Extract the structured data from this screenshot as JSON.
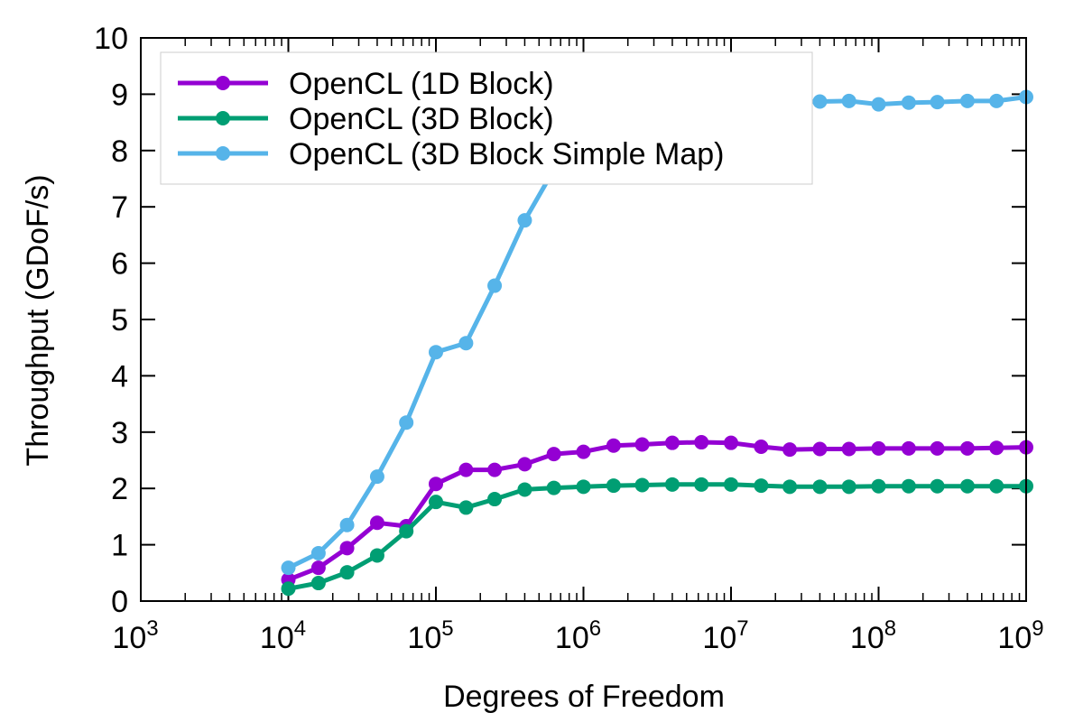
{
  "chart_data": {
    "type": "line",
    "xlabel": "Degrees of Freedom",
    "ylabel": "Throughput (GDoF/s)",
    "x_scale": "log",
    "xlim": [
      1000,
      1000000000
    ],
    "ylim": [
      0,
      10
    ],
    "x_ticks": [
      {
        "value": 1000,
        "base": "10",
        "exp": "3"
      },
      {
        "value": 10000,
        "base": "10",
        "exp": "4"
      },
      {
        "value": 100000,
        "base": "10",
        "exp": "5"
      },
      {
        "value": 1000000,
        "base": "10",
        "exp": "6"
      },
      {
        "value": 10000000,
        "base": "10",
        "exp": "7"
      },
      {
        "value": 100000000,
        "base": "10",
        "exp": "8"
      },
      {
        "value": 1000000000,
        "base": "10",
        "exp": "9"
      }
    ],
    "y_ticks": [
      0,
      1,
      2,
      3,
      4,
      5,
      6,
      7,
      8,
      9,
      10
    ],
    "grid": false,
    "legend_position": "top-left",
    "x": [
      10000,
      16000,
      25000,
      40000,
      63000,
      100000,
      160000,
      250000,
      400000,
      630000,
      1000000,
      1600000,
      2500000,
      4000000,
      6300000,
      10000000,
      16000000,
      25000000,
      40000000,
      63000000,
      100000000,
      160000000,
      250000000,
      400000000,
      630000000,
      1000000000
    ],
    "series": [
      {
        "name": "OpenCL (1D Block)",
        "color": "#9400d3",
        "values": [
          0.38,
          0.59,
          0.94,
          1.39,
          1.33,
          2.08,
          2.33,
          2.33,
          2.43,
          2.61,
          2.65,
          2.76,
          2.78,
          2.81,
          2.82,
          2.81,
          2.74,
          2.69,
          2.7,
          2.7,
          2.71,
          2.71,
          2.71,
          2.71,
          2.72,
          2.73
        ]
      },
      {
        "name": "OpenCL (3D Block)",
        "color": "#009e73",
        "values": [
          0.22,
          0.32,
          0.51,
          0.81,
          1.24,
          1.76,
          1.66,
          1.81,
          1.98,
          2.01,
          2.03,
          2.05,
          2.06,
          2.07,
          2.07,
          2.07,
          2.05,
          2.03,
          2.03,
          2.03,
          2.04,
          2.04,
          2.04,
          2.04,
          2.04,
          2.04
        ]
      },
      {
        "name": "OpenCL (3D Block Simple Map)",
        "color": "#56b4e9",
        "values": [
          0.59,
          0.85,
          1.35,
          2.21,
          3.17,
          4.42,
          4.58,
          5.6,
          6.76,
          7.66,
          7.95,
          8.44,
          8.86,
          9.09,
          9.25,
          9.23,
          8.93,
          8.86,
          8.87,
          8.88,
          8.82,
          8.85,
          8.86,
          8.88,
          8.88,
          8.95
        ]
      }
    ]
  }
}
